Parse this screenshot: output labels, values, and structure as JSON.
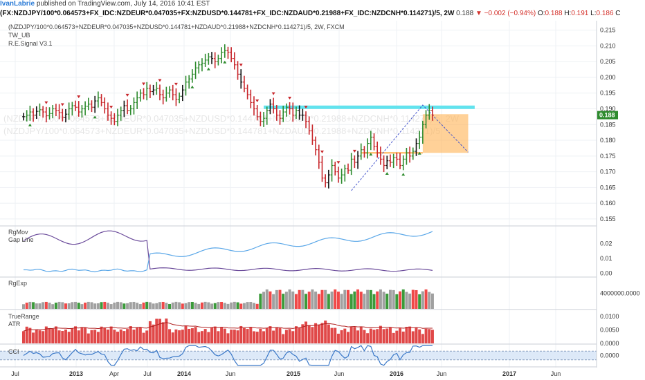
{
  "header": {
    "author": "IvanLabrie",
    "published": "published on TradingView.com, July 14, 2016 10:41 EST",
    "symbol": "(FX:NZDJPY/100*0.064573+FX_IDC:NZDEUR*0.047035+FX:NZDUSD*0.144781+FX_IDC:NZDAUD*0.21988+FX_IDC:NZDCNH*0.114271)/5, 2W",
    "last": "0.188",
    "change_arrow": "▼",
    "change": "−0.002 (−0.94%)",
    "o_label": "O:",
    "o_value": "0.188",
    "h_label": "H:",
    "h_value": "0.191",
    "l_label": "L:",
    "l_value": "0.186",
    "c_label": "C"
  },
  "legend": {
    "title": "(NZDJPY/100*0.064573+NZDEUR*0.047035+NZDUSD*0.144781+NZDAUD*0.21988+NZDCNH*0.114271)/5, 2W, FXCM",
    "study1": "TW_UB",
    "study2": "R.E.Signal V3.1",
    "watermark1": "(NZDJPY/100*0.064573+NZDEUR*0.047035+NZDUSD*0.144781+NZDAUD*0.21988+NZDCNH*0.114271)/5, 2W",
    "watermark2": "(NZDJPY/100*0.064573+NZDEUR*0.047035+NZDUSD*0.144781+NZDAUD*0.21988+NZDCNH*0.114271)/5"
  },
  "colors": {
    "up": "#2e8b2e",
    "down": "#c8262b",
    "neutral": "#111111",
    "grid": "#eef1f4",
    "resistance": "#62e3ee",
    "target_box": "#ffb253",
    "rgmov_line1": "#5aa7e8",
    "rgmov_line2": "#6a4a9a",
    "rgexp_gray": "#a0a0a0",
    "rgexp_red": "#f04848",
    "rgexp_green": "#3a9a3a",
    "truerange": "#e04848",
    "atr": "#b02020",
    "cci": "#3a78c8",
    "cci_band": "#dde9f8",
    "price_badge": "#2e8b2e"
  },
  "chart_data": [
    {
      "type": "candlestick",
      "name": "price",
      "interval": "2W",
      "y_ticks": [
        "0.155",
        "0.160",
        "0.165",
        "0.170",
        "0.175",
        "0.180",
        "0.185",
        "0.190",
        "0.195",
        "0.200",
        "0.205",
        "0.210",
        "0.215"
      ],
      "ylim": [
        0.153,
        0.218
      ],
      "x_ticks": [
        "Jul",
        "2013",
        "Apr",
        "Jul",
        "2014",
        "Jun",
        "2015",
        "Jun",
        "2016",
        "Jun",
        "2017",
        "Jun"
      ],
      "last_price_label": "0.188",
      "resistance_level": 0.1905,
      "closes": [
        0.1875,
        0.188,
        0.189,
        0.188,
        0.1892,
        0.1897,
        0.189,
        0.1878,
        0.1885,
        0.19,
        0.1895,
        0.1888,
        0.1872,
        0.1883,
        0.19,
        0.191,
        0.1905,
        0.189,
        0.19,
        0.1908,
        0.1915,
        0.1905,
        0.1925,
        0.1935,
        0.192,
        0.19,
        0.188,
        0.187,
        0.186,
        0.188,
        0.1895,
        0.191,
        0.1895,
        0.19,
        0.192,
        0.1935,
        0.195,
        0.1945,
        0.1965,
        0.1955,
        0.196,
        0.1965,
        0.1945,
        0.1935,
        0.195,
        0.196,
        0.1945,
        0.193,
        0.194,
        0.196,
        0.1985,
        0.1995,
        0.201,
        0.203,
        0.204,
        0.2045,
        0.2055,
        0.2065,
        0.206,
        0.205,
        0.206,
        0.208,
        0.2085,
        0.208,
        0.206,
        0.204,
        0.201,
        0.1985,
        0.1965,
        0.1945,
        0.192,
        0.19,
        0.1875,
        0.186,
        0.187,
        0.1895,
        0.1915,
        0.19,
        0.188,
        0.187,
        0.189,
        0.1905,
        0.19,
        0.188,
        0.1895,
        0.188,
        0.188,
        0.186,
        0.183,
        0.18,
        0.177,
        0.173,
        0.168,
        0.1665,
        0.169,
        0.172,
        0.17,
        0.168,
        0.169,
        0.171,
        0.1705,
        0.174,
        0.173,
        0.175,
        0.177,
        0.176,
        0.179,
        0.181,
        0.178,
        0.176,
        0.174,
        0.172,
        0.1735,
        0.173,
        0.1745,
        0.174,
        0.172,
        0.174,
        0.176,
        0.175,
        0.1765,
        0.179,
        0.181,
        0.185,
        0.188,
        0.1895,
        0.188
      ],
      "target_box": {
        "x_start_bar": 123,
        "x_end_bar": 137,
        "top": 0.1883,
        "bottom": 0.176
      },
      "projection_line": [
        [
          101,
          0.164
        ],
        [
          123,
          0.1912
        ],
        [
          137,
          0.1762
        ]
      ],
      "base_line": {
        "from_bar": 104,
        "to_bar": 123,
        "level": 0.176
      }
    },
    {
      "type": "line",
      "name": "RgMov",
      "labels": [
        "RgMov",
        "Gap Line"
      ],
      "y_ticks": [
        "0.02",
        "0.01",
        "0.00"
      ],
      "ylim": [
        -0.002,
        0.031
      ]
    },
    {
      "type": "bar",
      "name": "RgExp",
      "labels": [
        "RgExp"
      ],
      "y_ticks": [
        "4000000.0000"
      ],
      "ylim": [
        0,
        8000000
      ]
    },
    {
      "type": "bar",
      "name": "TrueRange",
      "labels": [
        "TrueRange",
        "ATR"
      ],
      "y_ticks": [
        "0.0100",
        "0.0050",
        "0.0000"
      ],
      "ylim": [
        0,
        0.012
      ]
    },
    {
      "type": "line",
      "name": "CCI",
      "labels": [
        "CCI"
      ],
      "y_ticks": [
        "0.0000"
      ],
      "ylim": [
        -250,
        250
      ]
    }
  ]
}
